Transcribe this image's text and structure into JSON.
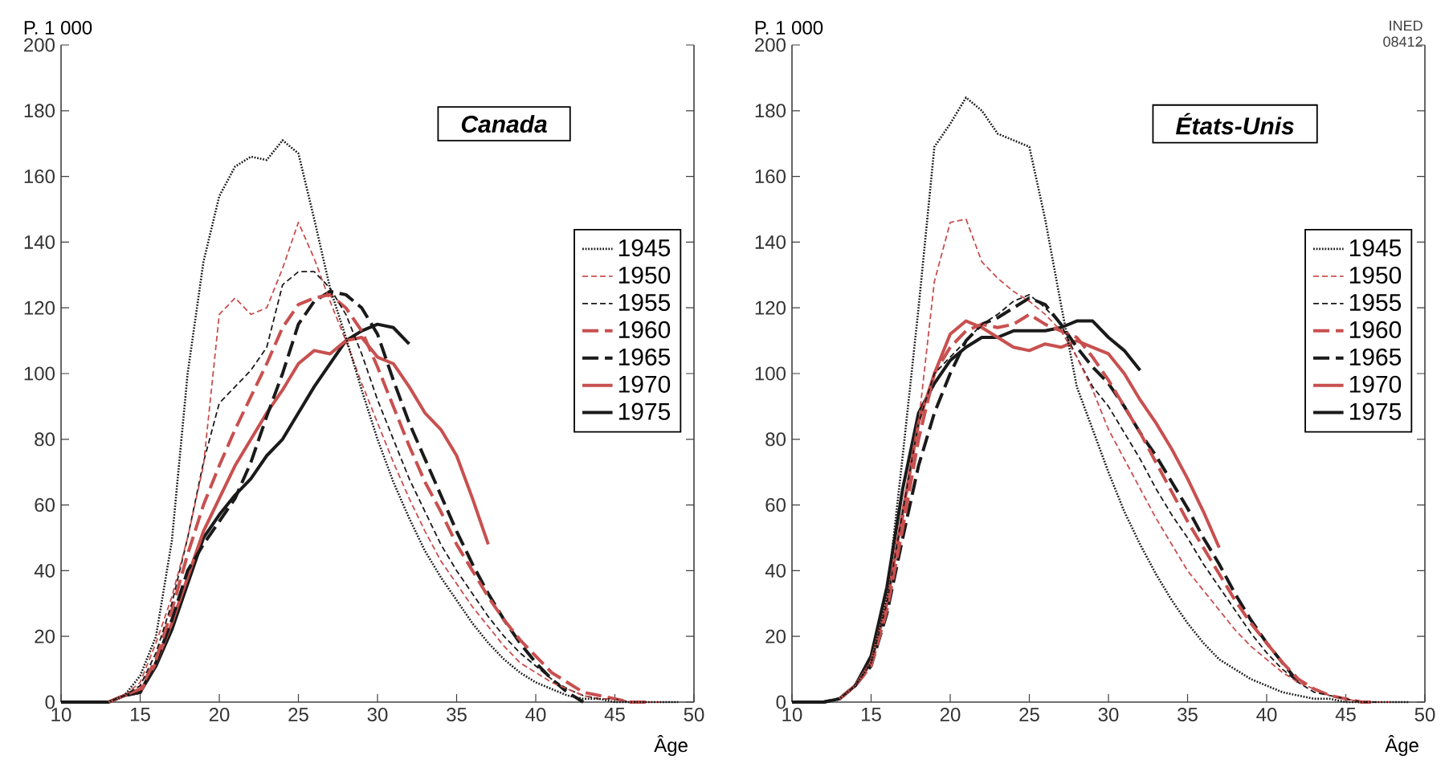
{
  "chart_data": [
    {
      "type": "line",
      "title": "Canada",
      "xlabel": "Âge",
      "ylabel": "P. 1 000",
      "xlim": [
        10,
        50
      ],
      "ylim": [
        0,
        200
      ],
      "xticks": [
        10,
        15,
        20,
        25,
        30,
        35,
        40,
        45,
        50
      ],
      "yticks": [
        0,
        20,
        40,
        60,
        80,
        100,
        120,
        140,
        160,
        180,
        200
      ],
      "legend": "right",
      "x": [
        10,
        11,
        12,
        13,
        14,
        15,
        16,
        17,
        18,
        19,
        20,
        21,
        22,
        23,
        24,
        25,
        26,
        27,
        28,
        29,
        30,
        31,
        32,
        33,
        34,
        35,
        36,
        37,
        38,
        39,
        40,
        41,
        42,
        43,
        44,
        45,
        46,
        47,
        48,
        49
      ],
      "series": [
        {
          "name": "1945",
          "color": "#1a1a1a",
          "line_style": "dotted",
          "values": [
            0,
            0,
            0,
            0,
            2,
            8,
            20,
            49,
            100,
            134,
            154,
            163,
            166,
            165,
            171,
            167,
            147,
            126,
            111,
            95,
            80,
            67,
            56,
            46,
            38,
            31,
            24,
            18,
            13,
            9,
            6,
            4,
            2,
            1,
            1,
            0,
            0,
            0,
            0,
            0
          ]
        },
        {
          "name": "1950",
          "color": "#c8504f",
          "line_style": "dashed",
          "values": [
            null,
            null,
            null,
            0,
            2,
            6,
            18,
            32,
            50,
            72,
            118,
            123,
            118,
            120,
            132,
            146,
            135,
            122,
            110,
            97,
            85,
            73,
            62,
            52,
            43,
            36,
            29,
            23,
            17,
            12,
            9,
            6,
            4,
            2,
            1,
            1,
            0,
            0,
            0,
            null
          ]
        },
        {
          "name": "1955",
          "color": "#1a1a1a",
          "line_style": "dashed",
          "values": [
            0,
            0,
            0,
            0,
            2,
            5,
            15,
            30,
            50,
            73,
            91,
            96,
            101,
            108,
            127,
            131,
            131,
            126,
            118,
            106,
            92,
            80,
            68,
            58,
            48,
            40,
            33,
            26,
            20,
            15,
            11,
            7,
            4,
            2,
            1,
            1,
            0,
            0,
            null,
            null
          ]
        },
        {
          "name": "1960",
          "color": "#c8504f",
          "line_style": "long dashed",
          "values": [
            null,
            null,
            null,
            0,
            2,
            4,
            13,
            28,
            45,
            60,
            72,
            83,
            93,
            103,
            114,
            121,
            123,
            124,
            120,
            113,
            102,
            90,
            78,
            67,
            58,
            48,
            40,
            32,
            25,
            19,
            14,
            9,
            6,
            3,
            2,
            1,
            0,
            0,
            null,
            null
          ]
        },
        {
          "name": "1965",
          "color": "#1a1a1a",
          "line_style": "long dashed",
          "values": [
            0,
            0,
            0,
            0,
            2,
            3,
            12,
            25,
            40,
            48,
            55,
            62,
            73,
            87,
            100,
            115,
            122,
            125,
            124,
            120,
            112,
            98,
            85,
            74,
            63,
            52,
            42,
            33,
            25,
            18,
            12,
            7,
            3,
            0,
            null,
            null,
            null,
            null,
            null,
            null
          ]
        },
        {
          "name": "1970",
          "color": "#c8504f",
          "line_style": "solid",
          "values": [
            null,
            null,
            null,
            0,
            2,
            3,
            12,
            24,
            38,
            52,
            62,
            72,
            80,
            88,
            95,
            103,
            107,
            106,
            110,
            111,
            105,
            103,
            96,
            88,
            83,
            75,
            62,
            48,
            null,
            null,
            null,
            null,
            null,
            null,
            null,
            null,
            null,
            null,
            null,
            null
          ]
        },
        {
          "name": "1975",
          "color": "#1a1a1a",
          "line_style": "solid",
          "values": [
            0,
            0,
            0,
            0,
            2,
            3,
            11,
            22,
            36,
            50,
            57,
            63,
            68,
            75,
            80,
            88,
            96,
            103,
            110,
            113,
            115,
            114,
            109,
            null,
            null,
            null,
            null,
            null,
            null,
            null,
            null,
            null,
            null,
            null,
            null,
            null,
            null,
            null,
            null,
            null
          ]
        }
      ]
    },
    {
      "type": "line",
      "title": "États-Unis",
      "xlabel": "Âge",
      "ylabel": "P. 1 000",
      "xlim": [
        10,
        50
      ],
      "ylim": [
        0,
        200
      ],
      "xticks": [
        10,
        15,
        20,
        25,
        30,
        35,
        40,
        45,
        50
      ],
      "yticks": [
        0,
        20,
        40,
        60,
        80,
        100,
        120,
        140,
        160,
        180,
        200
      ],
      "legend": "right",
      "annotations": [
        "INED 08412"
      ],
      "x": [
        10,
        11,
        12,
        13,
        14,
        15,
        16,
        17,
        18,
        19,
        20,
        21,
        22,
        23,
        24,
        25,
        26,
        27,
        28,
        29,
        30,
        31,
        32,
        33,
        34,
        35,
        36,
        37,
        38,
        39,
        40,
        41,
        42,
        43,
        44,
        45,
        46,
        47,
        48,
        49
      ],
      "series": [
        {
          "name": "1945",
          "color": "#1a1a1a",
          "line_style": "dotted",
          "values": [
            0,
            0,
            0,
            1,
            5,
            12,
            32,
            75,
            120,
            169,
            176,
            184,
            180,
            173,
            171,
            169,
            147,
            121,
            96,
            83,
            70,
            58,
            48,
            39,
            31,
            24,
            18,
            13,
            10,
            7,
            5,
            3,
            2,
            1,
            1,
            0,
            0,
            0,
            0,
            0
          ]
        },
        {
          "name": "1950",
          "color": "#c8504f",
          "line_style": "dashed",
          "values": [
            null,
            null,
            null,
            1,
            5,
            12,
            30,
            55,
            85,
            128,
            146,
            147,
            134,
            129,
            125,
            122,
            118,
            113,
            105,
            95,
            83,
            74,
            65,
            56,
            48,
            40,
            34,
            28,
            22,
            17,
            13,
            9,
            6,
            4,
            2,
            1,
            0,
            0,
            0,
            null
          ]
        },
        {
          "name": "1955",
          "color": "#1a1a1a",
          "line_style": "dashed",
          "values": [
            0,
            0,
            0,
            1,
            5,
            12,
            30,
            58,
            85,
            100,
            105,
            110,
            115,
            118,
            122,
            124,
            120,
            115,
            105,
            96,
            90,
            82,
            74,
            65,
            57,
            50,
            42,
            35,
            28,
            21,
            15,
            10,
            6,
            3,
            2,
            1,
            0,
            0,
            null,
            null
          ]
        },
        {
          "name": "1960",
          "color": "#c8504f",
          "line_style": "long dashed",
          "values": [
            null,
            null,
            null,
            1,
            5,
            11,
            28,
            53,
            80,
            100,
            108,
            113,
            115,
            114,
            115,
            118,
            115,
            113,
            111,
            105,
            98,
            90,
            82,
            73,
            64,
            55,
            47,
            39,
            31,
            24,
            18,
            12,
            7,
            4,
            2,
            1,
            0,
            0,
            null,
            null
          ]
        },
        {
          "name": "1965",
          "color": "#1a1a1a",
          "line_style": "long dashed",
          "values": [
            0,
            0,
            0,
            1,
            5,
            11,
            27,
            50,
            72,
            88,
            100,
            110,
            115,
            117,
            120,
            123,
            121,
            115,
            108,
            102,
            97,
            90,
            82,
            75,
            67,
            59,
            50,
            42,
            33,
            25,
            18,
            12,
            6,
            null,
            null,
            null,
            null,
            null,
            null,
            null
          ]
        },
        {
          "name": "1970",
          "color": "#c8504f",
          "line_style": "solid",
          "values": [
            null,
            null,
            null,
            1,
            5,
            12,
            30,
            58,
            85,
            100,
            112,
            116,
            114,
            111,
            108,
            107,
            109,
            108,
            110,
            108,
            106,
            100,
            92,
            85,
            77,
            68,
            58,
            47,
            null,
            null,
            null,
            null,
            null,
            null,
            null,
            null,
            null,
            null,
            null,
            null
          ]
        },
        {
          "name": "1975",
          "color": "#1a1a1a",
          "line_style": "solid",
          "values": [
            0,
            0,
            0,
            1,
            5,
            14,
            35,
            65,
            88,
            97,
            104,
            108,
            111,
            111,
            113,
            113,
            113,
            114,
            116,
            116,
            111,
            107,
            101,
            null,
            null,
            null,
            null,
            null,
            null,
            null,
            null,
            null,
            null,
            null,
            null,
            null,
            null,
            null,
            null,
            null
          ]
        }
      ]
    }
  ]
}
